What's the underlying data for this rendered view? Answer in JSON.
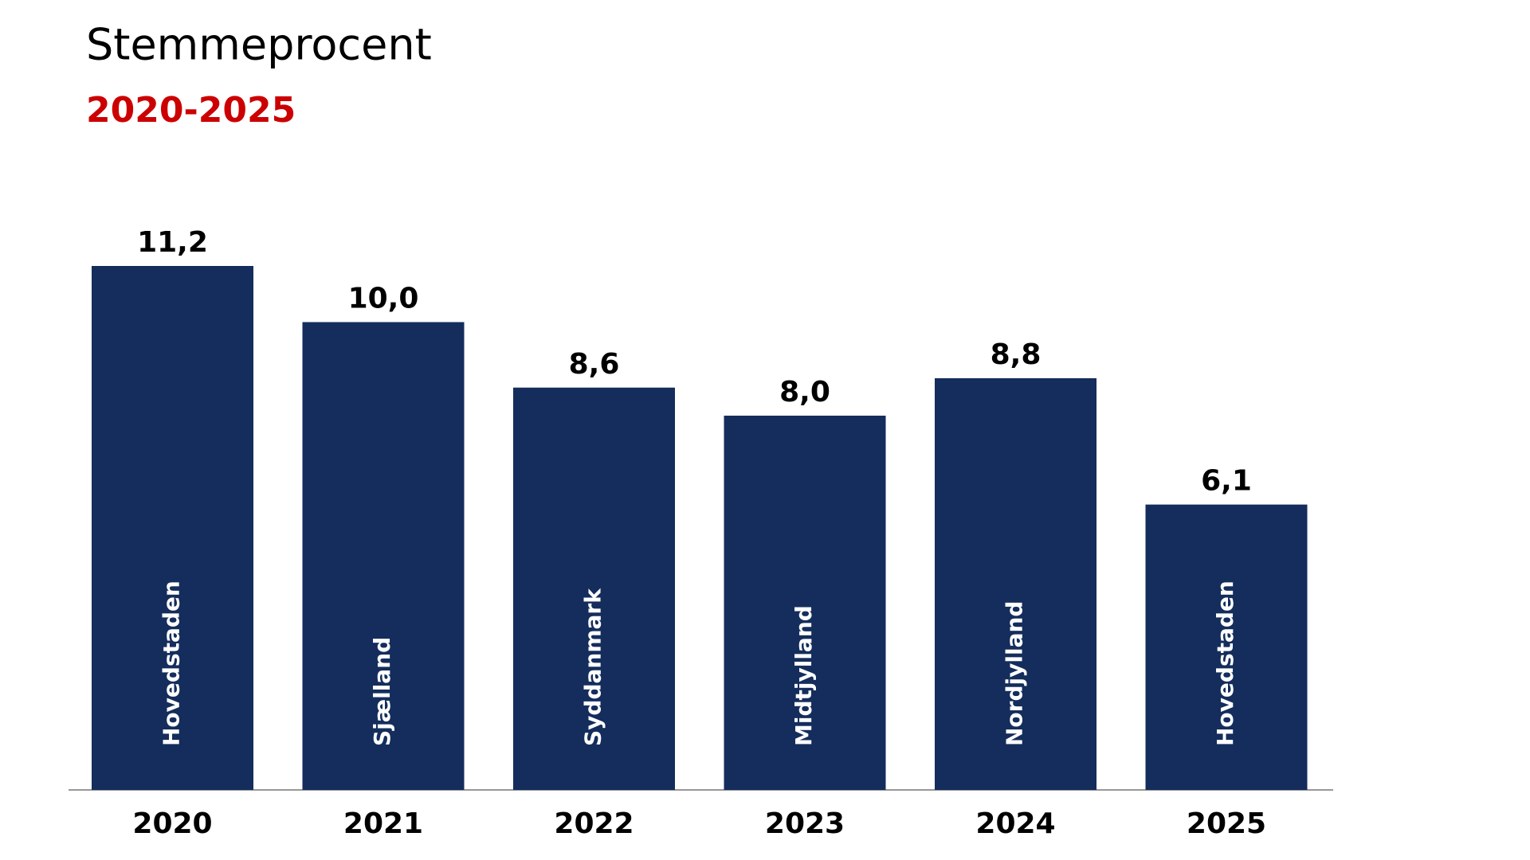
{
  "chart_data": {
    "type": "bar",
    "title": "Stemmeprocent",
    "subtitle": "2020-2025",
    "subtitle_color": "#cc0000",
    "categories": [
      "2020",
      "2021",
      "2022",
      "2023",
      "2024",
      "2025"
    ],
    "values": [
      11.2,
      10.0,
      8.6,
      8.0,
      8.8,
      6.1
    ],
    "value_labels": [
      "11,2",
      "10,0",
      "8,6",
      "8,0",
      "8,8",
      "6,1"
    ],
    "bar_labels": [
      "Hovedstaden",
      "Sjælland",
      "Syddanmark",
      "Midtjylland",
      "Nordjylland",
      "Hovedstaden"
    ],
    "color": "#142d5c"
  }
}
